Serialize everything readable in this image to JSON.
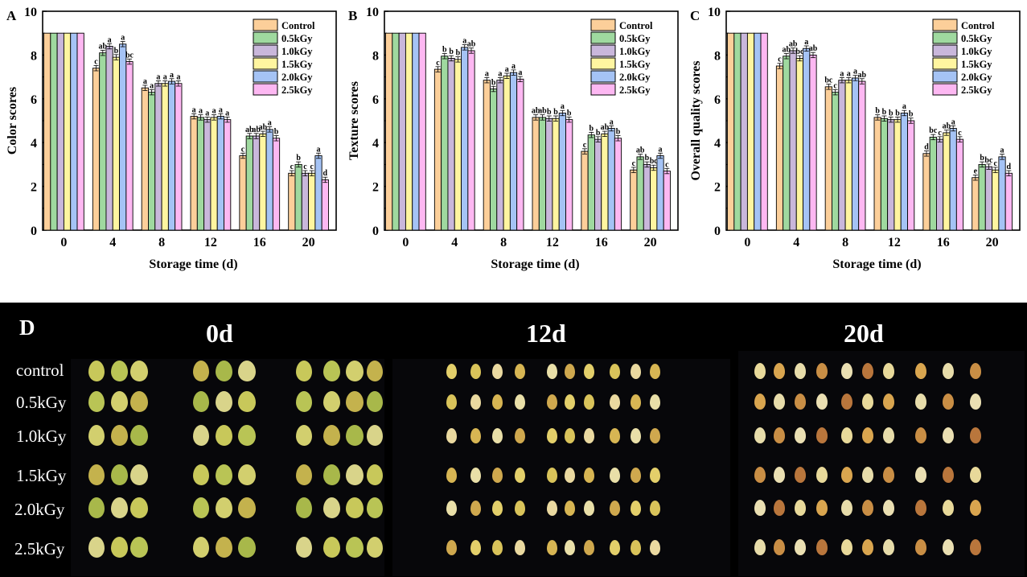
{
  "chart_data": [
    {
      "type": "bar",
      "panel": "A",
      "title": "",
      "xlabel": "Storage time (d)",
      "ylabel": "Color scores",
      "ylim": [
        0,
        10
      ],
      "yticks": [
        "0",
        "2",
        "4",
        "6",
        "8",
        "10"
      ],
      "categories": [
        "0",
        "4",
        "8",
        "12",
        "16",
        "20"
      ],
      "legend_position": "top-right",
      "series": [
        {
          "name": "Control",
          "color": "#fccf9a",
          "values": [
            9.0,
            7.4,
            6.5,
            5.2,
            3.4,
            2.6
          ],
          "letters": [
            "",
            "c",
            "a",
            "a",
            "c",
            "c"
          ]
        },
        {
          "name": "0.5kGy",
          "color": "#9fd99f",
          "values": [
            9.0,
            8.1,
            6.3,
            5.15,
            4.3,
            3.0
          ],
          "letters": [
            "",
            "ab",
            "a",
            "a",
            "ab",
            "b"
          ]
        },
        {
          "name": "1.0kGy",
          "color": "#c9b7db",
          "values": [
            9.0,
            8.4,
            6.7,
            5.05,
            4.3,
            2.6
          ],
          "letters": [
            "",
            "a",
            "a",
            "a",
            "ab",
            "c"
          ]
        },
        {
          "name": "1.5kGy",
          "color": "#fff5a0",
          "values": [
            9.0,
            7.9,
            6.7,
            5.15,
            4.4,
            2.6
          ],
          "letters": [
            "",
            "b",
            "a",
            "a",
            "ab",
            "c"
          ]
        },
        {
          "name": "2.0kGy",
          "color": "#a5c3f5",
          "values": [
            9.0,
            8.5,
            6.8,
            5.2,
            4.6,
            3.4
          ],
          "letters": [
            "",
            "a",
            "a",
            "a",
            "a",
            "a"
          ]
        },
        {
          "name": "2.5kGy",
          "color": "#fdb8f2",
          "values": [
            9.0,
            7.7,
            6.7,
            5.05,
            4.2,
            2.3
          ],
          "letters": [
            "",
            "bc",
            "a",
            "a",
            "b",
            "d"
          ]
        }
      ]
    },
    {
      "type": "bar",
      "panel": "B",
      "title": "",
      "xlabel": "Storage time (d)",
      "ylabel": "Texture scores",
      "ylim": [
        0,
        10
      ],
      "yticks": [
        "0",
        "2",
        "4",
        "6",
        "8",
        "10"
      ],
      "categories": [
        "0",
        "4",
        "8",
        "12",
        "16",
        "20"
      ],
      "legend_position": "top-right",
      "series": [
        {
          "name": "Control",
          "color": "#fccf9a",
          "values": [
            9.0,
            7.35,
            6.85,
            5.15,
            3.6,
            2.75
          ],
          "letters": [
            "",
            "c",
            "a",
            "ab",
            "c",
            "c"
          ]
        },
        {
          "name": "0.5kGy",
          "color": "#9fd99f",
          "values": [
            9.0,
            7.95,
            6.45,
            5.15,
            4.35,
            3.35
          ],
          "letters": [
            "",
            "b",
            "b",
            "ab",
            "b",
            "ab"
          ]
        },
        {
          "name": "1.0kGy",
          "color": "#c9b7db",
          "values": [
            9.0,
            7.85,
            6.85,
            5.1,
            4.15,
            3.0
          ],
          "letters": [
            "",
            "b",
            "a",
            "b",
            "b",
            "b"
          ]
        },
        {
          "name": "1.5kGy",
          "color": "#fff5a0",
          "values": [
            9.0,
            7.8,
            7.05,
            5.1,
            4.4,
            2.85
          ],
          "letters": [
            "",
            "b",
            "a",
            "b",
            "ab",
            "bc"
          ]
        },
        {
          "name": "2.0kGy",
          "color": "#a5c3f5",
          "values": [
            9.0,
            8.35,
            7.2,
            5.35,
            4.65,
            3.4
          ],
          "letters": [
            "",
            "a",
            "a",
            "a",
            "a",
            "a"
          ]
        },
        {
          "name": "2.5kGy",
          "color": "#fdb8f2",
          "values": [
            9.0,
            8.2,
            6.9,
            5.05,
            4.2,
            2.7
          ],
          "letters": [
            "",
            "ab",
            "a",
            "b",
            "b",
            "c"
          ]
        }
      ]
    },
    {
      "type": "bar",
      "panel": "C",
      "title": "",
      "xlabel": "Storage time (d)",
      "ylabel": "Overall quality scores",
      "ylim": [
        0,
        10
      ],
      "yticks": [
        "0",
        "2",
        "4",
        "6",
        "8",
        "10"
      ],
      "categories": [
        "0",
        "4",
        "8",
        "12",
        "16",
        "20"
      ],
      "legend_position": "top-right",
      "series": [
        {
          "name": "Control",
          "color": "#fccf9a",
          "values": [
            9.0,
            7.5,
            6.55,
            5.15,
            3.5,
            2.4
          ],
          "letters": [
            "",
            "c",
            "bc",
            "b",
            "d",
            "e"
          ]
        },
        {
          "name": "0.5kGy",
          "color": "#9fd99f",
          "values": [
            9.0,
            7.95,
            6.3,
            5.1,
            4.25,
            3.0
          ],
          "letters": [
            "",
            "ab",
            "c",
            "b",
            "bc",
            "b"
          ]
        },
        {
          "name": "1.0kGy",
          "color": "#c9b7db",
          "values": [
            9.0,
            8.2,
            6.85,
            5.05,
            4.15,
            2.9
          ],
          "letters": [
            "",
            "ab",
            "a",
            "b",
            "c",
            "bc"
          ]
        },
        {
          "name": "1.5kGy",
          "color": "#fff5a0",
          "values": [
            9.0,
            7.85,
            6.85,
            5.05,
            4.45,
            2.75
          ],
          "letters": [
            "",
            "bc",
            "a",
            "b",
            "ab",
            "c"
          ]
        },
        {
          "name": "2.0kGy",
          "color": "#a5c3f5",
          "values": [
            9.0,
            8.3,
            6.95,
            5.35,
            4.65,
            3.35
          ],
          "letters": [
            "",
            "a",
            "a",
            "a",
            "a",
            "a"
          ]
        },
        {
          "name": "2.5kGy",
          "color": "#fdb8f2",
          "values": [
            9.0,
            8.0,
            6.8,
            5.0,
            4.15,
            2.6
          ],
          "letters": [
            "",
            "ab",
            "ab",
            "b",
            "c",
            "d"
          ]
        }
      ]
    }
  ],
  "photo_panel": {
    "label": "D",
    "time_labels": [
      "0d",
      "12d",
      "20d"
    ],
    "row_labels": [
      "control",
      "0.5kGy",
      "1.0kGy",
      "1.5kGy",
      "2.0kGy",
      "2.5kGy"
    ]
  }
}
